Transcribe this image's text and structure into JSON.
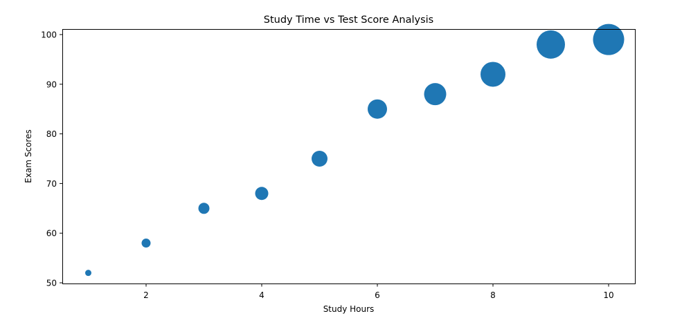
{
  "chart_data": {
    "type": "scatter",
    "title": "Study Time vs Test Score Analysis",
    "xlabel": "Study Hours",
    "ylabel": "Exam Scores",
    "x": [
      1,
      2,
      3,
      4,
      5,
      6,
      7,
      8,
      9,
      10
    ],
    "y": [
      52,
      58,
      65,
      68,
      75,
      85,
      88,
      92,
      98,
      99
    ],
    "marker_radius_px": [
      4.5,
      6.5,
      8,
      9.5,
      11.5,
      14,
      16,
      18,
      20.5,
      22.5
    ],
    "xticks": [
      2,
      4,
      6,
      8,
      10
    ],
    "yticks": [
      50,
      60,
      70,
      80,
      90,
      100
    ],
    "xlim": [
      0.6,
      10.45
    ],
    "ylim": [
      49.9,
      101.4
    ],
    "grid": false,
    "legend": null,
    "color": "#1f77b4"
  }
}
